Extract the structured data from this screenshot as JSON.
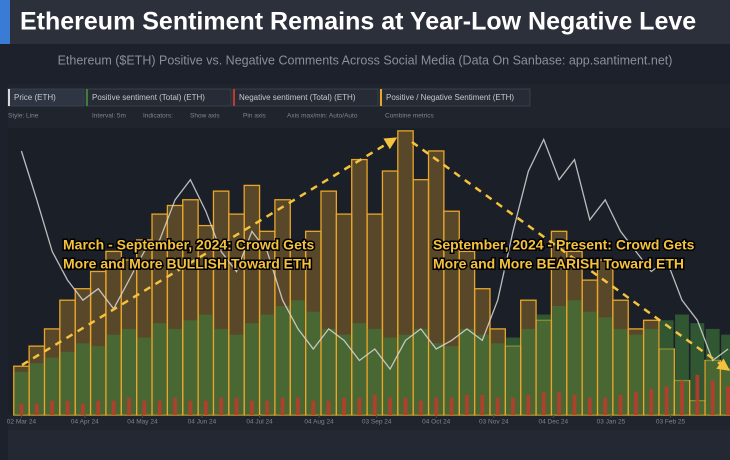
{
  "header": {
    "title": "Ethereum Sentiment Remains at Year-Low Negative Leve",
    "subtitle": "Ethereum ($ETH) Positive vs. Negative Comments Across Social Media (Data On Sanbase: app.santiment.net)"
  },
  "toolbar": {
    "items": [
      "Style: Line",
      "Interval: 5m",
      "Indicators:",
      "Show axis",
      "Pin axis",
      "Axis max/min: Auto/Auto",
      "Combine metrics"
    ]
  },
  "chart_data": {
    "type": "combo",
    "x": [
      0,
      8,
      16,
      24,
      32,
      40,
      48,
      56,
      64,
      72,
      80,
      88,
      96,
      104,
      112,
      120,
      128,
      136,
      144,
      152,
      160,
      168,
      176,
      184,
      192,
      200,
      208,
      216,
      224,
      232,
      240,
      248,
      256,
      264,
      272,
      280,
      288,
      296,
      304,
      312,
      320,
      328,
      336,
      344,
      352,
      360,
      368
    ],
    "xlim": [
      -7,
      369
    ],
    "xticks": [
      {
        "value": 0,
        "label": "02 Mar 24"
      },
      {
        "value": 33,
        "label": "04 Apr 24"
      },
      {
        "value": 63,
        "label": "04 May 24"
      },
      {
        "value": 94,
        "label": "04 Jun 24"
      },
      {
        "value": 124,
        "label": "04 Jul 24"
      },
      {
        "value": 155,
        "label": "04 Aug 24"
      },
      {
        "value": 185,
        "label": "03 Sep 24"
      },
      {
        "value": 216,
        "label": "04 Oct 24"
      },
      {
        "value": 246,
        "label": "03 Nov 24"
      },
      {
        "value": 277,
        "label": "04 Dec 24"
      },
      {
        "value": 307,
        "label": "03 Jan 25"
      },
      {
        "value": 338,
        "label": "03 Feb 25"
      }
    ],
    "ylim": [
      0,
      100
    ],
    "series": [
      {
        "name": "Price (ETH)",
        "type": "line",
        "color": "#d8d8d8",
        "values": [
          92,
          75,
          57,
          47,
          40,
          44,
          37,
          47,
          57,
          61,
          75,
          82,
          71,
          57,
          50,
          64,
          57,
          40,
          30,
          23,
          30,
          26,
          19,
          23,
          16,
          26,
          30,
          23,
          26,
          30,
          26,
          40,
          64,
          85,
          96,
          82,
          89,
          68,
          75,
          64,
          57,
          50,
          54,
          40,
          33,
          19,
          23
        ]
      },
      {
        "name": "Positive sentiment (Total) (ETH)",
        "type": "bar",
        "color": "#3f7d3a",
        "values": [
          15,
          18,
          20,
          22,
          25,
          24,
          28,
          30,
          27,
          32,
          30,
          33,
          35,
          30,
          28,
          32,
          35,
          38,
          40,
          36,
          30,
          28,
          32,
          30,
          27,
          28,
          30,
          25,
          24,
          30,
          28,
          25,
          27,
          30,
          35,
          38,
          40,
          36,
          34,
          30,
          28,
          30,
          33,
          35,
          32,
          30,
          28
        ]
      },
      {
        "name": "Negative sentiment (Total) (ETH)",
        "type": "bar",
        "color": "#c0392b",
        "values": [
          4,
          4,
          5,
          5,
          4,
          5,
          5,
          6,
          5,
          5,
          6,
          5,
          5,
          6,
          6,
          5,
          5,
          6,
          6,
          5,
          5,
          6,
          6,
          7,
          6,
          6,
          5,
          6,
          6,
          7,
          7,
          6,
          6,
          7,
          8,
          8,
          7,
          6,
          6,
          7,
          8,
          9,
          10,
          12,
          14,
          12,
          10
        ]
      },
      {
        "name": "Positive / Negative Sentiment (ETH)",
        "type": "step",
        "color": "#e8a62a",
        "values": [
          17,
          24,
          30,
          40,
          44,
          50,
          57,
          54,
          61,
          70,
          73,
          75,
          66,
          78,
          70,
          80,
          64,
          75,
          59,
          64,
          78,
          70,
          89,
          70,
          85,
          99,
          82,
          92,
          71,
          57,
          44,
          30,
          24,
          40,
          33,
          64,
          57,
          47,
          54,
          40,
          30,
          33,
          23,
          12,
          5,
          19,
          16
        ]
      }
    ],
    "annotations": [
      {
        "lines": [
          "March - September, 2024: Crowd Gets",
          "More and More BULLISH Toward ETH"
        ]
      },
      {
        "lines": [
          "September, 2024 - Present: Crowd Gets",
          "More and More BEARISH Toward ETH"
        ]
      }
    ]
  }
}
